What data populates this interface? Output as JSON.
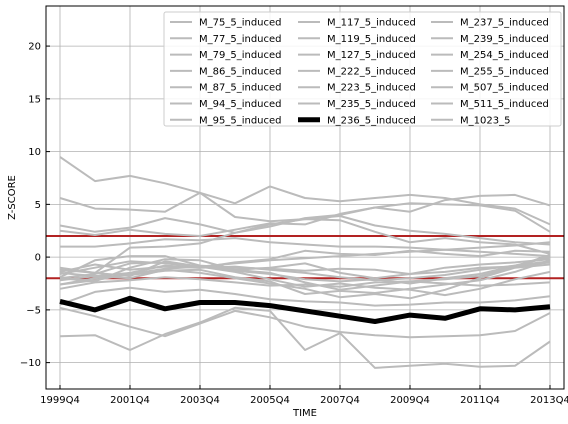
{
  "chart_data": {
    "type": "line",
    "title": "",
    "xlabel": "TIME",
    "ylabel": "Z-SCORE",
    "xlim": [
      -0.4,
      14.4
    ],
    "ylim": [
      -12.5,
      23.8
    ],
    "x_ticks": [
      0,
      2,
      4,
      6,
      8,
      10,
      12,
      14
    ],
    "x_tick_labels": [
      "1999Q4",
      "2001Q4",
      "2003Q4",
      "2005Q4",
      "2007Q4",
      "2009Q4",
      "2011Q4",
      "2013Q4"
    ],
    "y_ticks": [
      -10,
      -5,
      0,
      5,
      10,
      15,
      20
    ],
    "y_tick_labels": [
      "−10",
      "−5",
      "0",
      "5",
      "10",
      "15",
      "20"
    ],
    "grid": true,
    "legend_position": "top-right",
    "threshold_lines": [
      2,
      -2
    ],
    "colors": {
      "series": "#bbbbbb",
      "highlight": "#000000",
      "threshold": "#b22222",
      "grid": "#b0b0b0"
    },
    "x": [
      0,
      1,
      2,
      3,
      4,
      5,
      6,
      7,
      8,
      9,
      10,
      11,
      12,
      13,
      14
    ],
    "series": [
      {
        "name": "M_75_5_induced",
        "values": [
          9.5,
          7.2,
          7.7,
          7.0,
          6.1,
          5.1,
          6.7,
          5.6,
          5.3,
          5.6,
          5.9,
          5.6,
          5.0,
          4.6,
          3.1
        ]
      },
      {
        "name": "M_77_5_induced",
        "values": [
          5.6,
          4.6,
          4.5,
          4.3,
          6.1,
          3.8,
          3.4,
          3.6,
          3.9,
          3.0,
          2.5,
          2.2,
          1.8,
          1.4,
          1.2
        ]
      },
      {
        "name": "M_79_5_induced",
        "values": [
          3.0,
          2.4,
          2.8,
          3.7,
          3.1,
          2.3,
          3.1,
          3.6,
          3.5,
          2.4,
          1.4,
          1.8,
          1.4,
          1.2,
          0.3
        ]
      },
      {
        "name": "M_86_5_induced",
        "values": [
          2.5,
          2.1,
          2.6,
          2.2,
          2.0,
          2.6,
          3.2,
          3.1,
          4.1,
          4.7,
          5.1,
          5.0,
          4.9,
          4.4,
          2.4
        ]
      },
      {
        "name": "M_87_5_induced",
        "values": [
          1.0,
          1.0,
          1.3,
          1.7,
          1.6,
          1.8,
          1.4,
          1.2,
          1.0,
          1.0,
          0.9,
          0.7,
          0.5,
          0.3,
          0.1
        ]
      },
      {
        "name": "M_94_5_induced",
        "values": [
          -1.0,
          -1.5,
          0.9,
          1.0,
          1.3,
          2.3,
          2.9,
          3.7,
          4.0,
          4.7,
          4.3,
          5.4,
          5.8,
          5.9,
          4.9
        ]
      },
      {
        "name": "M_95_5_induced",
        "values": [
          -1.5,
          -1.8,
          -1.5,
          -0.8,
          -1.0,
          -0.5,
          -0.2,
          0.6,
          0.3,
          0.2,
          0.6,
          0.3,
          0.1,
          0.6,
          0.5
        ]
      },
      {
        "name": "M_117_5_induced",
        "values": [
          -1.9,
          -0.3,
          0.1,
          0.1,
          -0.8,
          -1.0,
          -1.1,
          -1.3,
          -1.1,
          -1.2,
          -1.6,
          -1.4,
          -1.0,
          -0.9,
          -0.5
        ]
      },
      {
        "name": "M_119_5_induced",
        "values": [
          -2.0,
          -2.3,
          -1.0,
          -0.2,
          -0.3,
          -1.2,
          -1.0,
          -0.6,
          -1.5,
          -2.0,
          -1.6,
          -1.0,
          -0.7,
          -0.5,
          -0.2
        ]
      },
      {
        "name": "M_127_5_induced",
        "values": [
          -1.2,
          -1.5,
          -1.8,
          -0.4,
          -0.9,
          -1.3,
          -1.6,
          -2.1,
          -2.3,
          -2.1,
          -2.5,
          -2.0,
          -1.6,
          -0.8,
          0.0
        ]
      },
      {
        "name": "M_222_5_induced",
        "values": [
          -1.6,
          -1.0,
          -0.4,
          -0.6,
          -0.9,
          -1.2,
          -1.5,
          -2.4,
          -3.1,
          -2.7,
          -2.3,
          -2.1,
          -1.8,
          -0.9,
          0.2
        ]
      },
      {
        "name": "M_223_5_induced",
        "values": [
          -2.6,
          -2.0,
          -1.7,
          -1.3,
          -1.2,
          -1.9,
          -2.3,
          -3.5,
          -3.2,
          -3.4,
          -3.0,
          -2.6,
          -2.2,
          -1.4,
          -0.3
        ]
      },
      {
        "name": "M_235_5_induced",
        "values": [
          -1.4,
          -0.7,
          -1.2,
          -0.9,
          -1.0,
          -0.9,
          -1.2,
          -1.5,
          -1.9,
          -2.2,
          -2.0,
          -1.7,
          -1.2,
          -0.8,
          -0.4
        ]
      },
      {
        "name": "M_236_5_induced",
        "values": [
          -4.2,
          -5.0,
          -3.9,
          -4.9,
          -4.3,
          -4.3,
          -4.6,
          -5.1,
          -5.6,
          -6.1,
          -5.5,
          -5.8,
          -4.9,
          -5.0,
          -4.7
        ],
        "highlight": true
      },
      {
        "name": "M_237_5_induced",
        "values": [
          -3.0,
          -2.4,
          -2.2,
          -1.9,
          -2.1,
          -2.4,
          -2.7,
          -2.6,
          -2.8,
          -2.4,
          -2.3,
          -2.5,
          -2.7,
          -2.6,
          -2.4
        ]
      },
      {
        "name": "M_239_5_induced",
        "values": [
          -2.2,
          -1.8,
          -2.0,
          -1.2,
          -1.5,
          -2.0,
          -2.5,
          -3.0,
          -3.8,
          -3.5,
          -3.9,
          -3.1,
          -2.0,
          -1.0,
          -0.7
        ]
      },
      {
        "name": "M_254_5_induced",
        "values": [
          -4.5,
          -3.3,
          -2.9,
          -3.3,
          -3.1,
          -3.5,
          -4.0,
          -4.2,
          -4.3,
          -4.6,
          -4.5,
          -4.3,
          -4.3,
          -4.1,
          -3.7
        ]
      },
      {
        "name": "M_255_5_induced",
        "values": [
          -4.8,
          -5.6,
          -6.6,
          -7.5,
          -6.3,
          -5.1,
          -5.7,
          -6.6,
          -7.1,
          -7.4,
          -7.6,
          -7.5,
          -7.4,
          -7.0,
          -5.3
        ]
      },
      {
        "name": "M_507_5_induced",
        "values": [
          -7.5,
          -7.4,
          -8.8,
          -7.3,
          -6.2,
          -4.8,
          -5.1,
          -8.8,
          -7.2,
          -10.5,
          -10.3,
          -10.1,
          -10.4,
          -10.3,
          -8.0
        ]
      },
      {
        "name": "M_511_5_induced",
        "values": [
          -2.0,
          -1.6,
          -0.6,
          -0.5,
          -0.9,
          -1.4,
          -2.1,
          -2.8,
          -2.5,
          -2.9,
          -3.1,
          -3.6,
          -3.0,
          -2.1,
          -1.4
        ]
      },
      {
        "name": "M_1023_5",
        "values": [
          -2.6,
          -2.2,
          -1.6,
          -1.1,
          -0.9,
          -0.6,
          -0.3,
          -0.1,
          0.1,
          0.3,
          0.5,
          0.7,
          0.9,
          1.1,
          1.4
        ]
      }
    ]
  }
}
